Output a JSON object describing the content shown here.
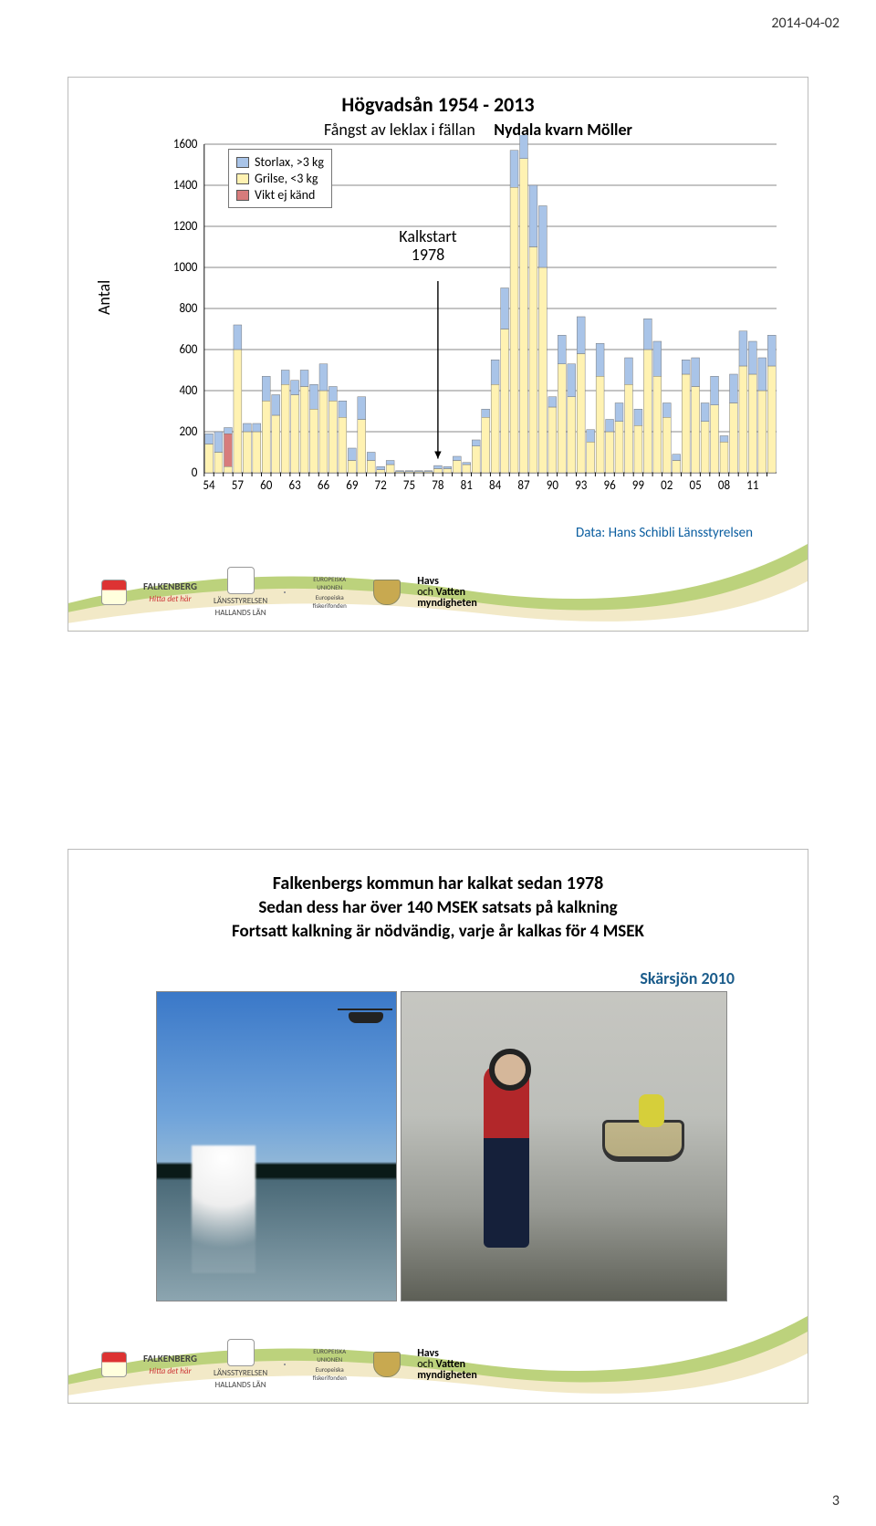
{
  "page": {
    "date": "2014-04-02",
    "number": "3"
  },
  "chart": {
    "type": "bar-stacked",
    "title": "Högvadsån 1954 - 2013",
    "subtitle_a": "Fångst av leklax i fällan",
    "subtitle_b": "Nydala kvarn Möller",
    "ylabel": "Antal",
    "ylim": [
      0,
      1600
    ],
    "ytick_step": 200,
    "yticks": [
      "0",
      "200",
      "400",
      "600",
      "800",
      "1000",
      "1200",
      "1400",
      "1600"
    ],
    "xticks": [
      "54",
      "57",
      "60",
      "63",
      "66",
      "69",
      "72",
      "75",
      "78",
      "81",
      "84",
      "87",
      "90",
      "93",
      "96",
      "99",
      "02",
      "05",
      "08",
      "11"
    ],
    "xlim_years": [
      1954,
      2013
    ],
    "legend": [
      {
        "key": "stor",
        "label": "Storlax, >3 kg",
        "color": "#a9c4e8"
      },
      {
        "key": "grilse",
        "label": "Grilse, <3 kg",
        "color": "#fff2b2"
      },
      {
        "key": "vikt",
        "label": "Vikt ej känd",
        "color": "#d77c7c"
      }
    ],
    "kalk_label": "Kalkstart 1978",
    "data_attr": "Data: Hans Schibli Länsstyrelsen",
    "colors": {
      "stor": "#a9c4e8",
      "grilse": "#fff2b2",
      "vikt": "#d77c7c",
      "grid": "#888888",
      "axis": "#000000",
      "background": "#ffffff"
    },
    "font_sizes": {
      "title": 22,
      "subtitle": 18,
      "legend": 14,
      "axis": 12,
      "ylabel": 18
    },
    "years": [
      1954,
      1955,
      1956,
      1957,
      1958,
      1959,
      1960,
      1961,
      1962,
      1963,
      1964,
      1965,
      1966,
      1967,
      1968,
      1969,
      1970,
      1971,
      1972,
      1973,
      1974,
      1975,
      1976,
      1977,
      1978,
      1979,
      1980,
      1981,
      1982,
      1983,
      1984,
      1985,
      1986,
      1987,
      1988,
      1989,
      1990,
      1991,
      1992,
      1993,
      1994,
      1995,
      1996,
      1997,
      1998,
      1999,
      2000,
      2001,
      2002,
      2003,
      2004,
      2005,
      2006,
      2007,
      2008,
      2009,
      2010,
      2011,
      2012,
      2013
    ],
    "grilse_vals": [
      140,
      100,
      30,
      600,
      200,
      200,
      350,
      280,
      430,
      380,
      420,
      310,
      400,
      350,
      270,
      60,
      260,
      60,
      15,
      40,
      5,
      5,
      5,
      5,
      20,
      20,
      60,
      40,
      130,
      270,
      430,
      700,
      1390,
      1530,
      1100,
      1000,
      320,
      530,
      370,
      580,
      150,
      470,
      200,
      250,
      430,
      230,
      600,
      470,
      270,
      60,
      480,
      420,
      250,
      330,
      150,
      340,
      520,
      480,
      400,
      520
    ],
    "stor_vals": [
      50,
      100,
      30,
      120,
      40,
      40,
      120,
      100,
      70,
      70,
      80,
      120,
      130,
      70,
      80,
      60,
      110,
      40,
      15,
      20,
      5,
      5,
      5,
      5,
      15,
      10,
      20,
      10,
      30,
      40,
      120,
      200,
      180,
      170,
      300,
      300,
      50,
      140,
      160,
      180,
      60,
      160,
      60,
      90,
      130,
      80,
      150,
      170,
      70,
      30,
      70,
      140,
      90,
      140,
      30,
      140,
      170,
      160,
      160,
      150
    ],
    "vikt_vals": [
      0,
      0,
      160,
      0,
      0,
      0,
      0,
      0,
      0,
      0,
      0,
      0,
      0,
      0,
      0,
      0,
      0,
      0,
      0,
      0,
      0,
      0,
      0,
      0,
      0,
      0,
      0,
      0,
      0,
      0,
      0,
      0,
      0,
      0,
      0,
      0,
      0,
      0,
      0,
      0,
      0,
      0,
      0,
      0,
      0,
      0,
      0,
      0,
      0,
      0,
      0,
      0,
      0,
      0,
      0,
      0,
      0,
      0,
      0,
      0
    ]
  },
  "panel2": {
    "line1": "Falkenbergs kommun har kalkat sedan 1978",
    "line2": "Sedan dess har över 140 MSEK satsats på kalkning",
    "line3": "Fortsatt kalkning är nödvändig, varje år kalkas för 4 MSEK",
    "caption": "Skärsjön 2010"
  },
  "footer": {
    "falkenberg": "FALKENBERG",
    "falk_tag": "Hitta det här",
    "lansstyrelsen": "LÄNSSTYRELSEN",
    "halland": "HALLANDS LÄN",
    "eu": "EUROPEISKA UNIONEN",
    "eu2": "Europeiska fiskerifonden",
    "hav1": "Havs",
    "hav_och": "och ",
    "hav2": "Vatten",
    "hav3": "myndigheten",
    "wave_colors": {
      "green": "#bcd27c",
      "sand": "#f2e9c7",
      "white": "#ffffff"
    }
  }
}
